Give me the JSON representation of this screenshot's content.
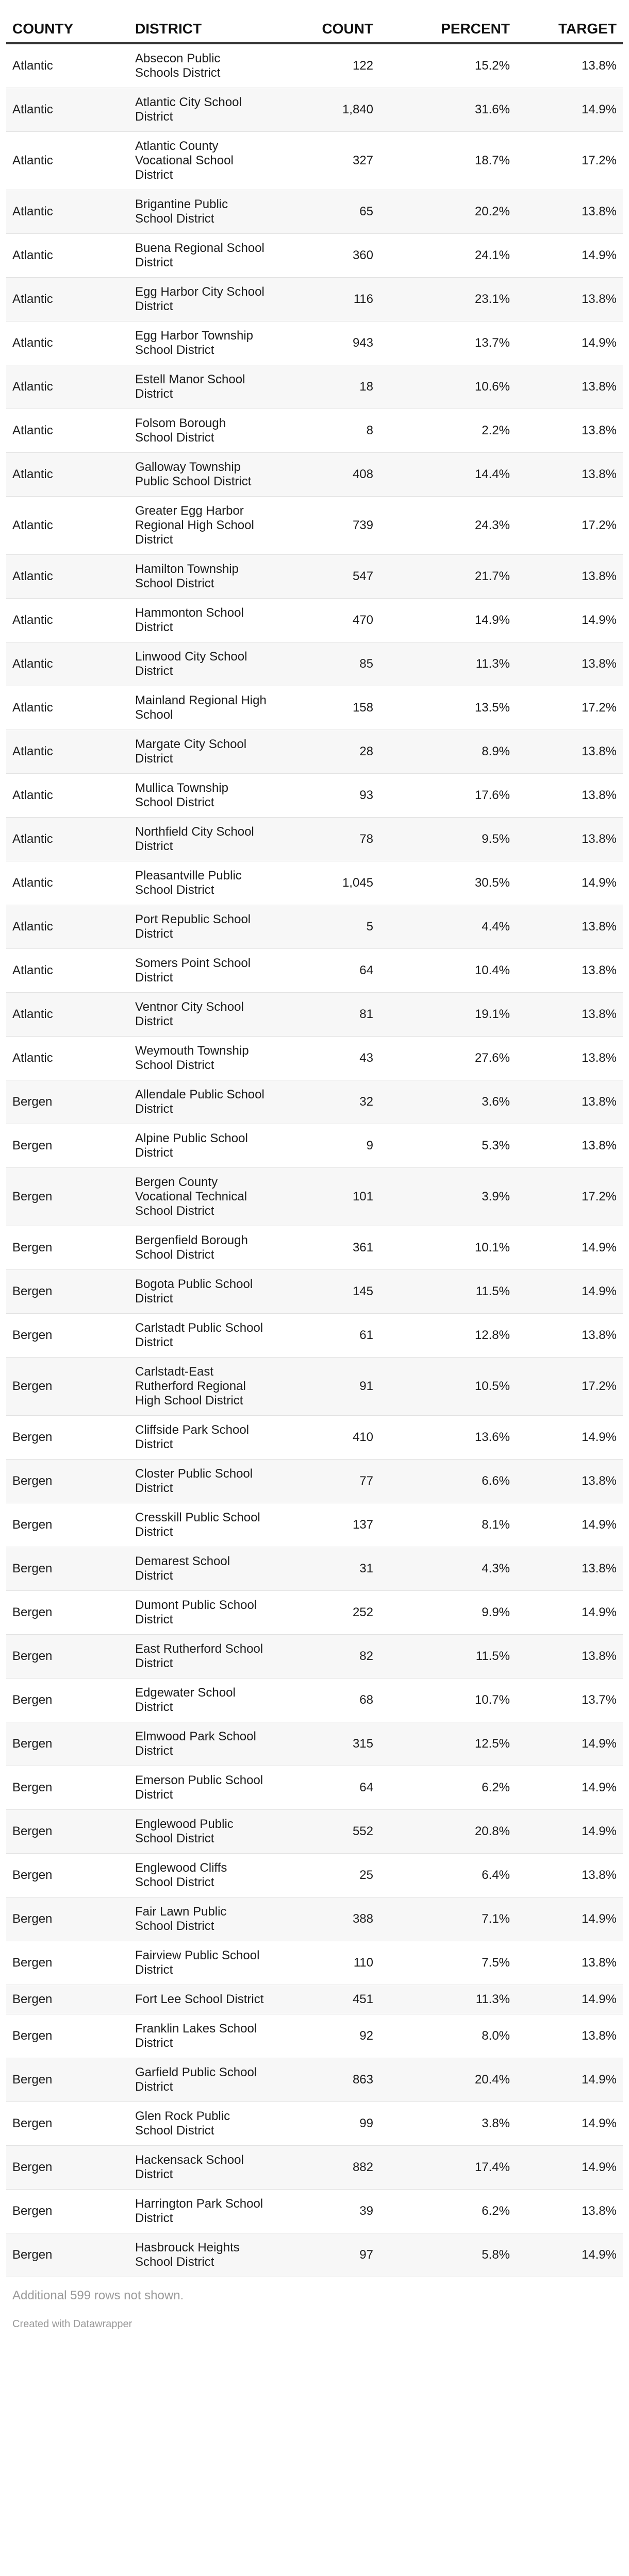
{
  "headers": {
    "county": "COUNTY",
    "district": "DISTRICT",
    "count": "COUNT",
    "percent": "PERCENT",
    "target": "TARGET"
  },
  "rows": [
    {
      "county": "Atlantic",
      "district": "Absecon Public Schools District",
      "count": "122",
      "percent": "15.2%",
      "target": "13.8%"
    },
    {
      "county": "Atlantic",
      "district": "Atlantic City School District",
      "count": "1,840",
      "percent": "31.6%",
      "target": "14.9%"
    },
    {
      "county": "Atlantic",
      "district": "Atlantic County Vocational School District",
      "count": "327",
      "percent": "18.7%",
      "target": "17.2%"
    },
    {
      "county": "Atlantic",
      "district": "Brigantine Public School District",
      "count": "65",
      "percent": "20.2%",
      "target": "13.8%"
    },
    {
      "county": "Atlantic",
      "district": "Buena Regional School District",
      "count": "360",
      "percent": "24.1%",
      "target": "14.9%"
    },
    {
      "county": "Atlantic",
      "district": "Egg Harbor City School District",
      "count": "116",
      "percent": "23.1%",
      "target": "13.8%"
    },
    {
      "county": "Atlantic",
      "district": "Egg Harbor Township School District",
      "count": "943",
      "percent": "13.7%",
      "target": "14.9%"
    },
    {
      "county": "Atlantic",
      "district": "Estell Manor School District",
      "count": "18",
      "percent": "10.6%",
      "target": "13.8%"
    },
    {
      "county": "Atlantic",
      "district": "Folsom Borough School District",
      "count": "8",
      "percent": "2.2%",
      "target": "13.8%"
    },
    {
      "county": "Atlantic",
      "district": "Galloway Township Public School District",
      "count": "408",
      "percent": "14.4%",
      "target": "13.8%"
    },
    {
      "county": "Atlantic",
      "district": "Greater Egg Harbor Regional High School District",
      "count": "739",
      "percent": "24.3%",
      "target": "17.2%"
    },
    {
      "county": "Atlantic",
      "district": "Hamilton Township School District",
      "count": "547",
      "percent": "21.7%",
      "target": "13.8%"
    },
    {
      "county": "Atlantic",
      "district": "Hammonton School District",
      "count": "470",
      "percent": "14.9%",
      "target": "14.9%"
    },
    {
      "county": "Atlantic",
      "district": "Linwood City School District",
      "count": "85",
      "percent": "11.3%",
      "target": "13.8%"
    },
    {
      "county": "Atlantic",
      "district": "Mainland Regional High School",
      "count": "158",
      "percent": "13.5%",
      "target": "17.2%"
    },
    {
      "county": "Atlantic",
      "district": "Margate City School District",
      "count": "28",
      "percent": "8.9%",
      "target": "13.8%"
    },
    {
      "county": "Atlantic",
      "district": "Mullica Township School District",
      "count": "93",
      "percent": "17.6%",
      "target": "13.8%"
    },
    {
      "county": "Atlantic",
      "district": "Northfield City School District",
      "count": "78",
      "percent": "9.5%",
      "target": "13.8%"
    },
    {
      "county": "Atlantic",
      "district": "Pleasantville Public School District",
      "count": "1,045",
      "percent": "30.5%",
      "target": "14.9%"
    },
    {
      "county": "Atlantic",
      "district": "Port Republic School District",
      "count": "5",
      "percent": "4.4%",
      "target": "13.8%"
    },
    {
      "county": "Atlantic",
      "district": "Somers Point School District",
      "count": "64",
      "percent": "10.4%",
      "target": "13.8%"
    },
    {
      "county": "Atlantic",
      "district": "Ventnor City School District",
      "count": "81",
      "percent": "19.1%",
      "target": "13.8%"
    },
    {
      "county": "Atlantic",
      "district": "Weymouth Township School District",
      "count": "43",
      "percent": "27.6%",
      "target": "13.8%"
    },
    {
      "county": "Bergen",
      "district": "Allendale Public School District",
      "count": "32",
      "percent": "3.6%",
      "target": "13.8%"
    },
    {
      "county": "Bergen",
      "district": "Alpine Public School District",
      "count": "9",
      "percent": "5.3%",
      "target": "13.8%"
    },
    {
      "county": "Bergen",
      "district": "Bergen County Vocational Technical School District",
      "count": "101",
      "percent": "3.9%",
      "target": "17.2%"
    },
    {
      "county": "Bergen",
      "district": "Bergenfield Borough School District",
      "count": "361",
      "percent": "10.1%",
      "target": "14.9%"
    },
    {
      "county": "Bergen",
      "district": "Bogota Public School District",
      "count": "145",
      "percent": "11.5%",
      "target": "14.9%"
    },
    {
      "county": "Bergen",
      "district": "Carlstadt Public School District",
      "count": "61",
      "percent": "12.8%",
      "target": "13.8%"
    },
    {
      "county": "Bergen",
      "district": "Carlstadt-East Rutherford Regional High School District",
      "count": "91",
      "percent": "10.5%",
      "target": "17.2%"
    },
    {
      "county": "Bergen",
      "district": "Cliffside Park School District",
      "count": "410",
      "percent": "13.6%",
      "target": "14.9%"
    },
    {
      "county": "Bergen",
      "district": "Closter Public School District",
      "count": "77",
      "percent": "6.6%",
      "target": "13.8%"
    },
    {
      "county": "Bergen",
      "district": "Cresskill Public School District",
      "count": "137",
      "percent": "8.1%",
      "target": "14.9%"
    },
    {
      "county": "Bergen",
      "district": "Demarest School District",
      "count": "31",
      "percent": "4.3%",
      "target": "13.8%"
    },
    {
      "county": "Bergen",
      "district": "Dumont Public School District",
      "count": "252",
      "percent": "9.9%",
      "target": "14.9%"
    },
    {
      "county": "Bergen",
      "district": "East Rutherford School District",
      "count": "82",
      "percent": "11.5%",
      "target": "13.8%"
    },
    {
      "county": "Bergen",
      "district": "Edgewater School District",
      "count": "68",
      "percent": "10.7%",
      "target": "13.7%"
    },
    {
      "county": "Bergen",
      "district": "Elmwood Park School District",
      "count": "315",
      "percent": "12.5%",
      "target": "14.9%"
    },
    {
      "county": "Bergen",
      "district": "Emerson Public School District",
      "count": "64",
      "percent": "6.2%",
      "target": "14.9%"
    },
    {
      "county": "Bergen",
      "district": "Englewood Public School District",
      "count": "552",
      "percent": "20.8%",
      "target": "14.9%"
    },
    {
      "county": "Bergen",
      "district": "Englewood Cliffs School District",
      "count": "25",
      "percent": "6.4%",
      "target": "13.8%"
    },
    {
      "county": "Bergen",
      "district": "Fair Lawn Public School District",
      "count": "388",
      "percent": "7.1%",
      "target": "14.9%"
    },
    {
      "county": "Bergen",
      "district": "Fairview Public School District",
      "count": "110",
      "percent": "7.5%",
      "target": "13.8%"
    },
    {
      "county": "Bergen",
      "district": "Fort Lee School District",
      "count": "451",
      "percent": "11.3%",
      "target": "14.9%"
    },
    {
      "county": "Bergen",
      "district": "Franklin Lakes School District",
      "count": "92",
      "percent": "8.0%",
      "target": "13.8%"
    },
    {
      "county": "Bergen",
      "district": "Garfield Public School District",
      "count": "863",
      "percent": "20.4%",
      "target": "14.9%"
    },
    {
      "county": "Bergen",
      "district": "Glen Rock Public School District",
      "count": "99",
      "percent": "3.8%",
      "target": "14.9%"
    },
    {
      "county": "Bergen",
      "district": "Hackensack School District",
      "count": "882",
      "percent": "17.4%",
      "target": "14.9%"
    },
    {
      "county": "Bergen",
      "district": "Harrington Park School District",
      "count": "39",
      "percent": "6.2%",
      "target": "13.8%"
    },
    {
      "county": "Bergen",
      "district": "Hasbrouck Heights School District",
      "count": "97",
      "percent": "5.8%",
      "target": "14.9%"
    }
  ],
  "footer": {
    "note": "Additional 599 rows not shown.",
    "credit": "Created with Datawrapper"
  }
}
